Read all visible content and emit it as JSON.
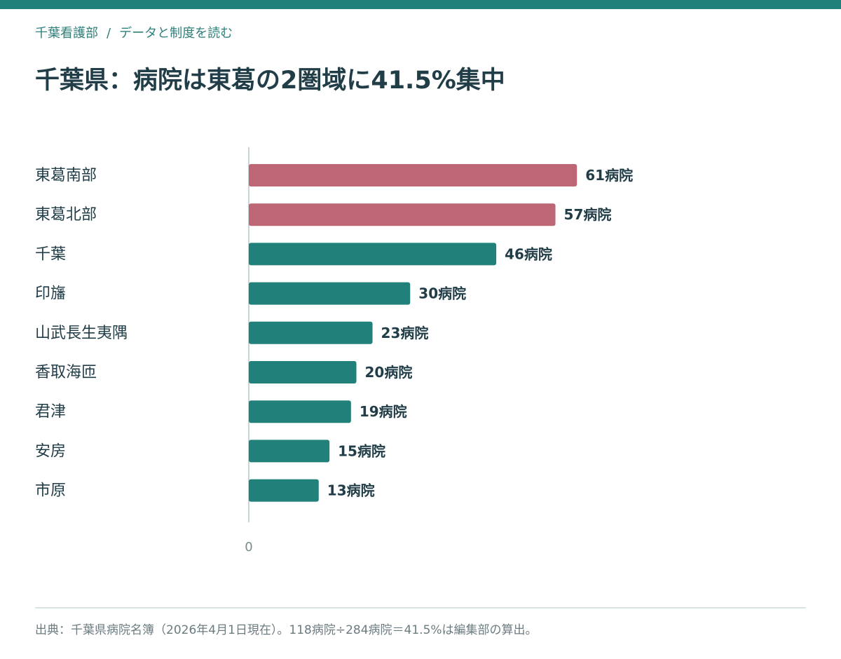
{
  "header": {
    "breadcrumb_site": "千葉看護部",
    "breadcrumb_separator": "/",
    "breadcrumb_section": "データと制度を読む",
    "title": "千葉県：病院は東葛の2圏域に41.5%集中"
  },
  "colors": {
    "accent": "#22807a",
    "highlight": "#bd6676",
    "text": "#213d47"
  },
  "chart_data": {
    "type": "bar",
    "orientation": "horizontal",
    "categories": [
      "東葛南部",
      "東葛北部",
      "千葉",
      "印旛",
      "山武長生夷隅",
      "香取海匝",
      "君津",
      "安房",
      "市原"
    ],
    "values": [
      61,
      57,
      46,
      30,
      23,
      20,
      19,
      15,
      13
    ],
    "value_labels": [
      "61病院",
      "57病院",
      "46病院",
      "30病院",
      "23病院",
      "20病院",
      "19病院",
      "15病院",
      "13病院"
    ],
    "highlighted": [
      true,
      true,
      false,
      false,
      false,
      false,
      false,
      false,
      false
    ],
    "x_ticks": [
      "0"
    ],
    "xlim": [
      0,
      71
    ],
    "grid": false,
    "legend": "none"
  },
  "footer": {
    "note": "出典：千葉県病院名簿（2026年4月1日現在）。118病院÷284病院＝41.5%は編集部の算出。"
  }
}
